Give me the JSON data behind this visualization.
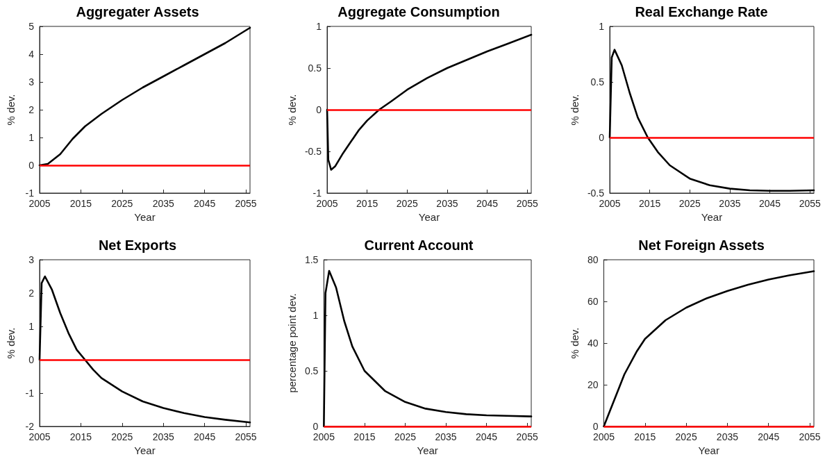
{
  "chart_data": [
    {
      "type": "line",
      "title": "Aggregater Assets",
      "xlabel": "Year",
      "ylabel": "% dev.",
      "xlim": [
        2005,
        2056
      ],
      "xticks": [
        2005,
        2015,
        2025,
        2035,
        2045,
        2055
      ],
      "ylim": [
        -1,
        5
      ],
      "yticks": [
        -1,
        0,
        1,
        2,
        3,
        4,
        5
      ],
      "marker": "none",
      "line_style": "solid",
      "x": [
        2005,
        2007,
        2010,
        2013,
        2016,
        2020,
        2025,
        2030,
        2035,
        2040,
        2045,
        2050,
        2056
      ],
      "series": [
        {
          "color": "#000000",
          "values": [
            0,
            0.05,
            0.4,
            0.95,
            1.4,
            1.85,
            2.35,
            2.8,
            3.2,
            3.6,
            4.0,
            4.4,
            4.95
          ]
        }
      ],
      "ref_lines": [
        {
          "axis": "y",
          "value": 0,
          "color": "#ff0000"
        }
      ]
    },
    {
      "type": "line",
      "title": "Aggregate Consumption",
      "xlabel": "Year",
      "ylabel": "% dev.",
      "xlim": [
        2005,
        2056
      ],
      "xticks": [
        2005,
        2015,
        2025,
        2035,
        2045,
        2055
      ],
      "ylim": [
        -1,
        1
      ],
      "yticks": [
        -1,
        -0.5,
        0,
        0.5,
        1
      ],
      "marker": "none",
      "line_style": "solid",
      "x": [
        2005,
        2005.3,
        2006,
        2007,
        2009,
        2011,
        2013,
        2015,
        2018,
        2021,
        2025,
        2030,
        2035,
        2040,
        2045,
        2050,
        2056
      ],
      "series": [
        {
          "color": "#000000",
          "values": [
            0,
            -0.6,
            -0.72,
            -0.68,
            -0.52,
            -0.38,
            -0.24,
            -0.13,
            0,
            0.1,
            0.24,
            0.38,
            0.5,
            0.6,
            0.7,
            0.79,
            0.9
          ]
        }
      ],
      "ref_lines": [
        {
          "axis": "y",
          "value": 0,
          "color": "#ff0000"
        }
      ]
    },
    {
      "type": "line",
      "title": "Real Exchange Rate",
      "xlabel": "Year",
      "ylabel": "% dev.",
      "xlim": [
        2005,
        2056
      ],
      "xticks": [
        2005,
        2015,
        2025,
        2035,
        2045,
        2055
      ],
      "ylim": [
        -0.5,
        1
      ],
      "yticks": [
        -0.5,
        0,
        0.5,
        1
      ],
      "marker": "none",
      "line_style": "solid",
      "x": [
        2005,
        2005.5,
        2006.2,
        2008,
        2010,
        2012,
        2014.5,
        2017,
        2020,
        2025,
        2030,
        2035,
        2040,
        2045,
        2050,
        2056
      ],
      "series": [
        {
          "color": "#000000",
          "values": [
            0,
            0.72,
            0.79,
            0.65,
            0.4,
            0.18,
            0,
            -0.13,
            -0.25,
            -0.37,
            -0.43,
            -0.46,
            -0.475,
            -0.48,
            -0.48,
            -0.475
          ]
        }
      ],
      "ref_lines": [
        {
          "axis": "y",
          "value": 0,
          "color": "#ff0000"
        }
      ]
    },
    {
      "type": "line",
      "title": "Net Exports",
      "xlabel": "Year",
      "ylabel": "% dev.",
      "xlim": [
        2005,
        2056
      ],
      "xticks": [
        2005,
        2015,
        2025,
        2035,
        2045,
        2055
      ],
      "ylim": [
        -2,
        3
      ],
      "yticks": [
        -2,
        -1,
        0,
        1,
        2,
        3
      ],
      "marker": "none",
      "line_style": "solid",
      "x": [
        2005,
        2005.5,
        2006.3,
        2008,
        2010,
        2012,
        2014,
        2016,
        2018,
        2020,
        2025,
        2030,
        2035,
        2040,
        2045,
        2050,
        2056
      ],
      "series": [
        {
          "color": "#000000",
          "values": [
            0,
            2.3,
            2.5,
            2.1,
            1.4,
            0.8,
            0.3,
            0,
            -0.3,
            -0.55,
            -0.95,
            -1.25,
            -1.45,
            -1.6,
            -1.72,
            -1.8,
            -1.88
          ]
        }
      ],
      "ref_lines": [
        {
          "axis": "y",
          "value": 0,
          "color": "#ff0000"
        }
      ]
    },
    {
      "type": "line",
      "title": "Current Account",
      "xlabel": "Year",
      "ylabel": "percentage point dev.",
      "xlim": [
        2005,
        2056
      ],
      "xticks": [
        2005,
        2015,
        2025,
        2035,
        2045,
        2055
      ],
      "ylim": [
        0,
        1.5
      ],
      "yticks": [
        0,
        0.5,
        1,
        1.5
      ],
      "marker": "none",
      "line_style": "solid",
      "x": [
        2005,
        2005.4,
        2006.3,
        2008,
        2010,
        2012,
        2015,
        2020,
        2025,
        2030,
        2035,
        2040,
        2045,
        2050,
        2056
      ],
      "series": [
        {
          "color": "#000000",
          "values": [
            0,
            1.2,
            1.4,
            1.25,
            0.95,
            0.72,
            0.5,
            0.32,
            0.22,
            0.16,
            0.13,
            0.11,
            0.1,
            0.095,
            0.09
          ]
        }
      ],
      "ref_lines": [
        {
          "axis": "y",
          "value": 0,
          "color": "#ff0000"
        }
      ]
    },
    {
      "type": "line",
      "title": "Net Foreign Assets",
      "xlabel": "Year",
      "ylabel": "% dev.",
      "xlim": [
        2005,
        2056
      ],
      "xticks": [
        2005,
        2015,
        2025,
        2035,
        2045,
        2055
      ],
      "ylim": [
        0,
        80
      ],
      "yticks": [
        0,
        20,
        40,
        60,
        80
      ],
      "marker": "none",
      "line_style": "solid",
      "x": [
        2005,
        2007,
        2010,
        2013,
        2015,
        2020,
        2025,
        2030,
        2035,
        2040,
        2045,
        2050,
        2056
      ],
      "series": [
        {
          "color": "#000000",
          "values": [
            0,
            10,
            25,
            36,
            42,
            51,
            57,
            61.5,
            65,
            68,
            70.5,
            72.5,
            74.5
          ]
        }
      ],
      "ref_lines": [
        {
          "axis": "y",
          "value": 0,
          "color": "#ff0000"
        }
      ]
    }
  ]
}
